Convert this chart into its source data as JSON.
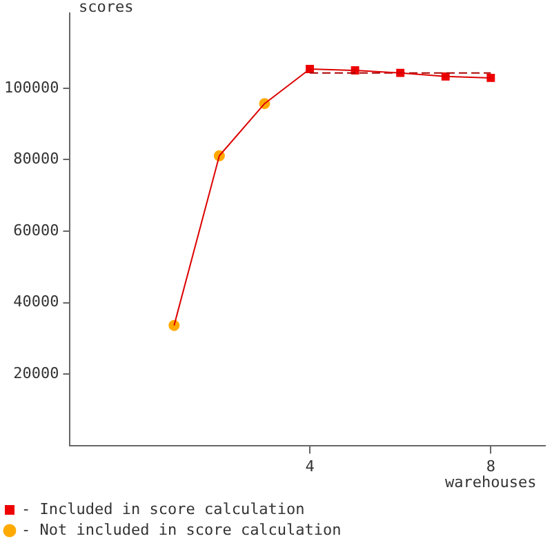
{
  "chart_data": {
    "type": "line",
    "xlabel": "warehouses",
    "ylabel": "scores",
    "xlim": [
      -1.3,
      9.2
    ],
    "xticks": [
      4,
      8
    ],
    "ylim": [
      0,
      121000
    ],
    "yticks": [
      20000,
      40000,
      60000,
      80000,
      100000
    ],
    "grid": false,
    "legend": "bottom left",
    "series": [
      {
        "type": "line",
        "color": "#dd0000",
        "marker": "none",
        "x": [
          1,
          2,
          3,
          4,
          5,
          6,
          7,
          8
        ],
        "values": [
          33600,
          81100,
          95700,
          105400,
          105000,
          104300,
          103300,
          102900
        ]
      },
      {
        "type": "line",
        "color": "#aa0000",
        "marker": "none",
        "line_style": "dashed",
        "x": [
          4,
          8
        ],
        "values": [
          104300,
          104300
        ]
      },
      {
        "type": "scatter",
        "name": "- Included in score calculation",
        "color": "#ee0000",
        "marker": "square",
        "x": [
          4,
          5,
          6,
          7,
          8
        ],
        "values": [
          105400,
          105000,
          104300,
          103300,
          102900
        ]
      },
      {
        "type": "scatter",
        "name": "- Not included in score calculation",
        "color": "#ffaa00",
        "marker": "circle",
        "x": [
          1,
          2,
          3
        ],
        "values": [
          33600,
          81100,
          95700
        ]
      }
    ]
  }
}
